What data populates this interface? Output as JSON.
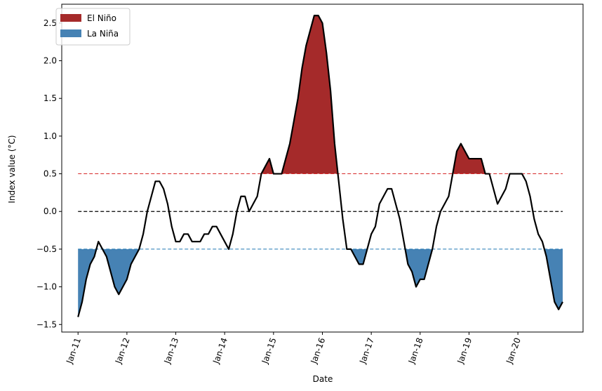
{
  "chart_data": {
    "type": "line",
    "xlabel": "Date",
    "ylabel": "Index value (°C)",
    "x_ticks": [
      "Jan-11",
      "Jan-12",
      "Jan-13",
      "Jan-14",
      "Jan-15",
      "Jan-16",
      "Jan-17",
      "Jan-18",
      "Jan-19",
      "Jan-20"
    ],
    "y_ticks": [
      "−1.5",
      "−1.0",
      "−0.5",
      "0.0",
      "0.5",
      "1.0",
      "1.5",
      "2.0",
      "2.5"
    ],
    "ylim": [
      -1.6,
      2.75
    ],
    "xlim": [
      "2010-09",
      "2021-05"
    ],
    "thresholds": {
      "el_nino": 0.5,
      "la_nina": -0.5,
      "zero": 0.0
    },
    "legend": {
      "position": "top-left",
      "entries": [
        {
          "label": "El Niño",
          "color": "#a52a2a"
        },
        {
          "label": "La Niña",
          "color": "#4682b4"
        }
      ]
    },
    "series": [
      {
        "dates": [
          "2011-01",
          "2011-02",
          "2011-03",
          "2011-04",
          "2011-05",
          "2011-06",
          "2011-07",
          "2011-08",
          "2011-09",
          "2011-10",
          "2011-11",
          "2011-12",
          "2012-01",
          "2012-02",
          "2012-03",
          "2012-04",
          "2012-05",
          "2012-06",
          "2012-07",
          "2012-08",
          "2012-09",
          "2012-10",
          "2012-11",
          "2012-12",
          "2013-01",
          "2013-02",
          "2013-03",
          "2013-04",
          "2013-05",
          "2013-06",
          "2013-07",
          "2013-08",
          "2013-09",
          "2013-10",
          "2013-11",
          "2013-12",
          "2014-01",
          "2014-02",
          "2014-03",
          "2014-04",
          "2014-05",
          "2014-06",
          "2014-07",
          "2014-08",
          "2014-09",
          "2014-10",
          "2014-11",
          "2014-12",
          "2015-01",
          "2015-02",
          "2015-03",
          "2015-04",
          "2015-05",
          "2015-06",
          "2015-07",
          "2015-08",
          "2015-09",
          "2015-10",
          "2015-11",
          "2015-12",
          "2016-01",
          "2016-02",
          "2016-03",
          "2016-04",
          "2016-05",
          "2016-06",
          "2016-07",
          "2016-08",
          "2016-09",
          "2016-10",
          "2016-11",
          "2016-12",
          "2017-01",
          "2017-02",
          "2017-03",
          "2017-04",
          "2017-05",
          "2017-06",
          "2017-07",
          "2017-08",
          "2017-09",
          "2017-10",
          "2017-11",
          "2017-12",
          "2018-01",
          "2018-02",
          "2018-03",
          "2018-04",
          "2018-05",
          "2018-06",
          "2018-07",
          "2018-08",
          "2018-09",
          "2018-10",
          "2018-11",
          "2018-12",
          "2019-01",
          "2019-02",
          "2019-03",
          "2019-04",
          "2019-05",
          "2019-06",
          "2019-07",
          "2019-08",
          "2019-09",
          "2019-10",
          "2019-11",
          "2019-12",
          "2020-01",
          "2020-02",
          "2020-03",
          "2020-04",
          "2020-05",
          "2020-06",
          "2020-07",
          "2020-08",
          "2020-09",
          "2020-10",
          "2020-11",
          "2020-12"
        ],
        "values": [
          -1.4,
          -1.2,
          -0.9,
          -0.7,
          -0.6,
          -0.4,
          -0.5,
          -0.6,
          -0.8,
          -1.0,
          -1.1,
          -1.0,
          -0.9,
          -0.7,
          -0.6,
          -0.5,
          -0.3,
          0.0,
          0.2,
          0.4,
          0.4,
          0.3,
          0.1,
          -0.2,
          -0.4,
          -0.4,
          -0.3,
          -0.3,
          -0.4,
          -0.4,
          -0.4,
          -0.3,
          -0.3,
          -0.2,
          -0.2,
          -0.3,
          -0.4,
          -0.5,
          -0.3,
          0.0,
          0.2,
          0.2,
          0.0,
          0.1,
          0.2,
          0.5,
          0.6,
          0.7,
          0.5,
          0.5,
          0.5,
          0.7,
          0.9,
          1.2,
          1.5,
          1.9,
          2.2,
          2.4,
          2.6,
          2.6,
          2.5,
          2.1,
          1.6,
          0.9,
          0.4,
          -0.1,
          -0.5,
          -0.5,
          -0.6,
          -0.7,
          -0.7,
          -0.5,
          -0.3,
          -0.2,
          0.1,
          0.2,
          0.3,
          0.3,
          0.1,
          -0.1,
          -0.4,
          -0.7,
          -0.8,
          -1.0,
          -0.9,
          -0.9,
          -0.7,
          -0.5,
          -0.2,
          0.0,
          0.1,
          0.2,
          0.5,
          0.8,
          0.9,
          0.8,
          0.7,
          0.7,
          0.7,
          0.7,
          0.5,
          0.5,
          0.3,
          0.1,
          0.2,
          0.3,
          0.5,
          0.5,
          0.5,
          0.5,
          0.4,
          0.2,
          -0.1,
          -0.3,
          -0.4,
          -0.6,
          -0.9,
          -1.2,
          -1.3,
          -1.2
        ]
      }
    ]
  },
  "colors": {
    "el_nino": "#a52a2a",
    "la_nina": "#4682b4",
    "el_nino_line": "#d62728",
    "la_nina_line": "#1f77b4",
    "zero_line": "#000000",
    "series_line": "#000000"
  }
}
